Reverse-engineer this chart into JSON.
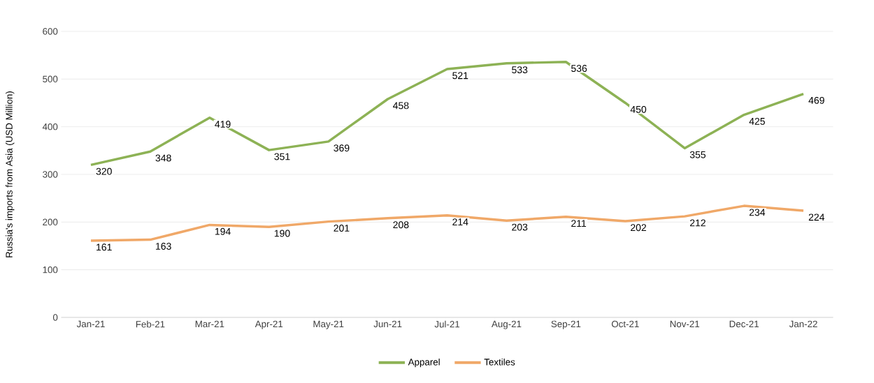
{
  "chart_data": {
    "type": "line",
    "ylabel": "Russia's imports from Asia (USD Million)",
    "categories": [
      "Jan-21",
      "Feb-21",
      "Mar-21",
      "Apr-21",
      "May-21",
      "Jun-21",
      "Jul-21",
      "Aug-21",
      "Sep-21",
      "Oct-21",
      "Nov-21",
      "Dec-21",
      "Jan-22"
    ],
    "series": [
      {
        "name": "Apparel",
        "color": "#8db255",
        "values": [
          320,
          348,
          419,
          351,
          369,
          458,
          521,
          533,
          536,
          450,
          355,
          425,
          469
        ]
      },
      {
        "name": "Textiles",
        "color": "#f0a868",
        "values": [
          161,
          163,
          194,
          190,
          201,
          208,
          214,
          203,
          211,
          202,
          212,
          234,
          224
        ]
      }
    ],
    "ylim": [
      0,
      600
    ],
    "yticks": [
      0,
      100,
      200,
      300,
      400,
      500,
      600
    ],
    "grid": "y",
    "legend": "bottom",
    "data_labels": true,
    "marker": "none",
    "line_style": "solid"
  }
}
